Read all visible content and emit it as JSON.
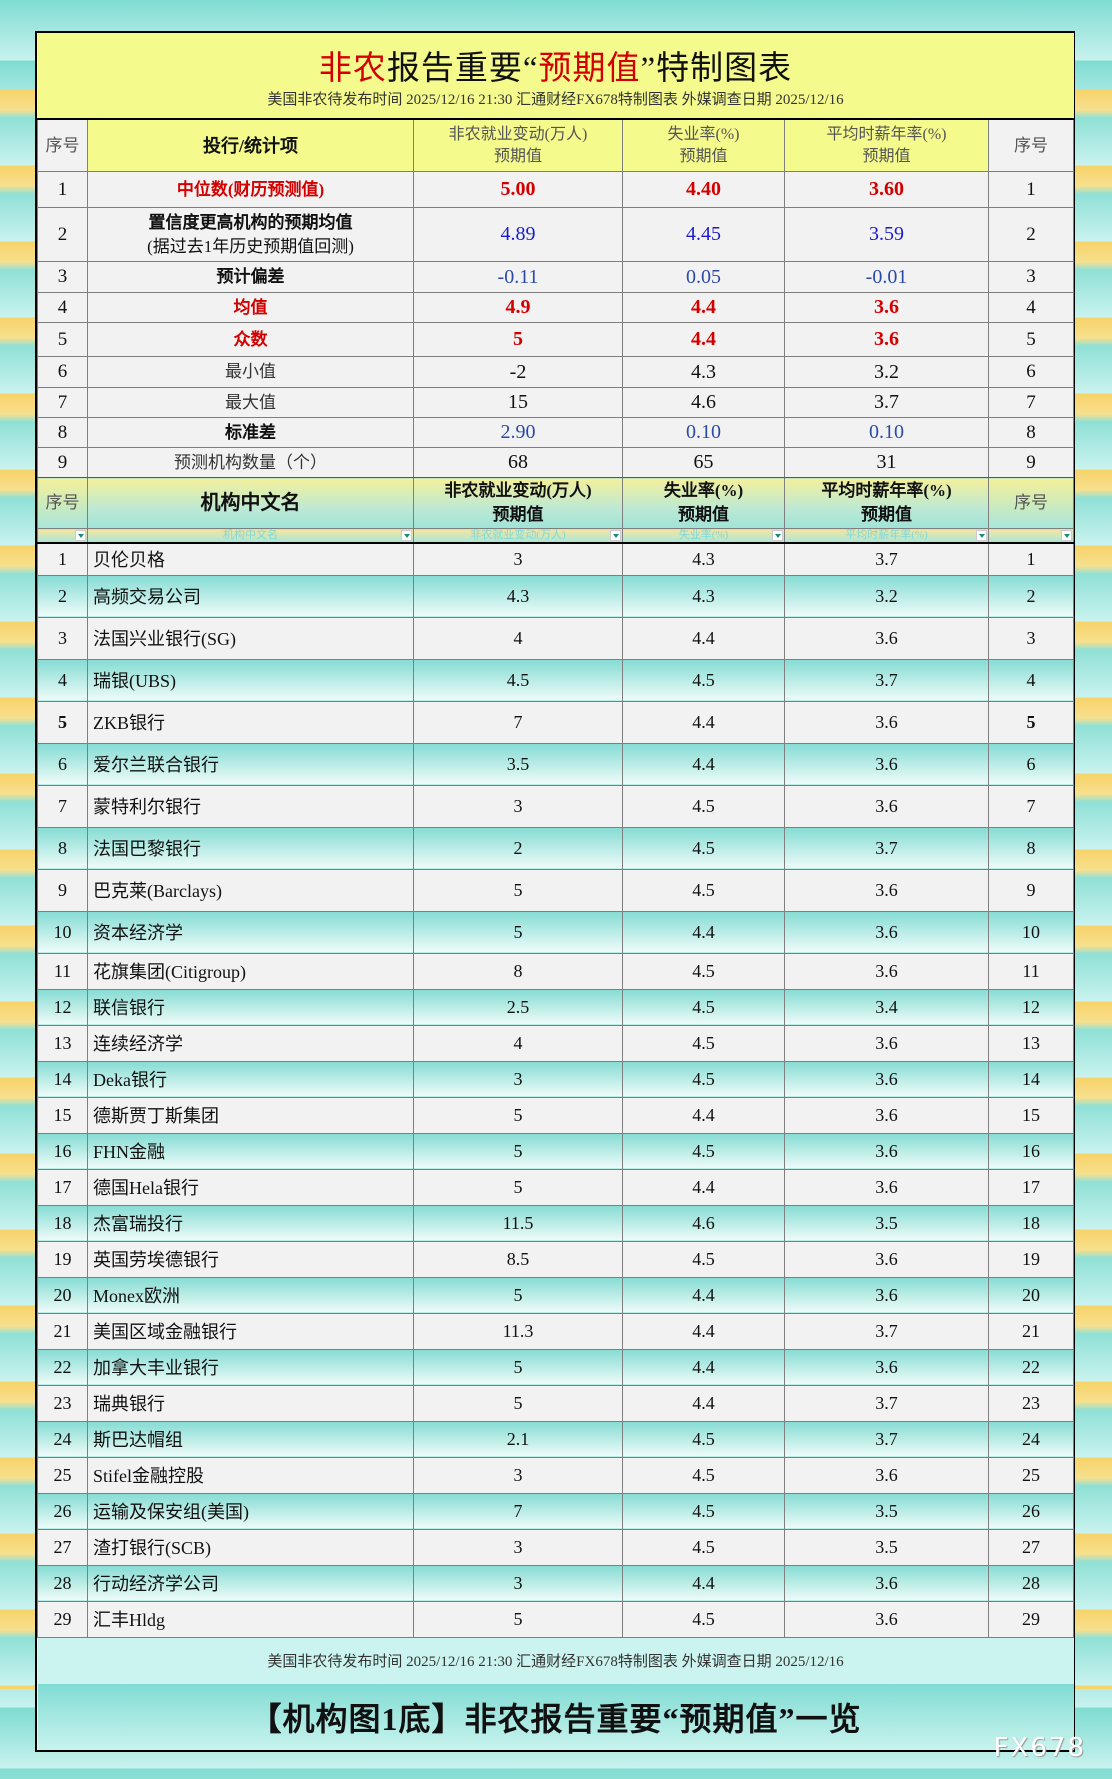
{
  "title": {
    "part1": "非农",
    "part2": "报告重要“",
    "part3": "预期值",
    "part4": "”特制图表",
    "subtitle": "美国非农待发布时间 2025/12/16 21:30  汇通财经FX678特制图表  外媒调查日期 2025/12/16"
  },
  "header": {
    "seq": "序号",
    "item": "投行/统计项",
    "nfp": "非农就业变动(万人)",
    "unemp": "失业率(%)",
    "wage": "平均时薪年率(%)",
    "sub": "预期值"
  },
  "stats": [
    {
      "n": "1",
      "label": "中位数(财历预测值)",
      "nfp": "5.00",
      "unemp": "4.40",
      "wage": "3.60",
      "style": "red"
    },
    {
      "n": "2",
      "label": "置信度更高机构的预期均值",
      "label2": "(据过去1年历史预期值回测)",
      "nfp": "4.89",
      "unemp": "4.45",
      "wage": "3.59",
      "style": "blue"
    },
    {
      "n": "3",
      "label": "预计偏差",
      "nfp": "-0.11",
      "unemp": "0.05",
      "wage": "-0.01",
      "style": "navy"
    },
    {
      "n": "4",
      "label": "均值",
      "nfp": "4.9",
      "unemp": "4.4",
      "wage": "3.6",
      "style": "red"
    },
    {
      "n": "5",
      "label": "众数",
      "nfp": "5",
      "unemp": "4.4",
      "wage": "3.6",
      "style": "red"
    },
    {
      "n": "6",
      "label": "最小值",
      "nfp": "-2",
      "unemp": "4.3",
      "wage": "3.2",
      "style": "plain"
    },
    {
      "n": "7",
      "label": "最大值",
      "nfp": "15",
      "unemp": "4.6",
      "wage": "3.7",
      "style": "plain"
    },
    {
      "n": "8",
      "label": "标准差",
      "nfp": "2.90",
      "unemp": "0.10",
      "wage": "0.10",
      "style": "navy"
    },
    {
      "n": "9",
      "label": "预测机构数量（个）",
      "nfp": "68",
      "unemp": "65",
      "wage": "31",
      "style": "plain"
    }
  ],
  "header2": {
    "seq": "序号",
    "name": "机构中文名",
    "nfp": "非农就业变动(万人)",
    "unemp": "失业率(%)",
    "wage": "平均时薪年率(%)",
    "sub": "预期值"
  },
  "filter": {
    "name": "机构中文名",
    "nfp": "非农就业变动(万人)",
    "unemp": "失业率(%)",
    "wage": "平均时薪年率(%)"
  },
  "institutions": [
    {
      "n": "1",
      "name": "贝伦贝格",
      "nfp": "3",
      "unemp": "4.3",
      "wage": "3.7"
    },
    {
      "n": "2",
      "name": "高频交易公司",
      "nfp": "4.3",
      "unemp": "4.3",
      "wage": "3.2"
    },
    {
      "n": "3",
      "name": "法国兴业银行(SG)",
      "nfp": "4",
      "unemp": "4.4",
      "wage": "3.6"
    },
    {
      "n": "4",
      "name": "瑞银(UBS)",
      "nfp": "4.5",
      "unemp": "4.5",
      "wage": "3.7"
    },
    {
      "n": "5",
      "name": "ZKB银行",
      "nfp": "7",
      "unemp": "4.4",
      "wage": "3.6"
    },
    {
      "n": "6",
      "name": "爱尔兰联合银行",
      "nfp": "3.5",
      "unemp": "4.4",
      "wage": "3.6"
    },
    {
      "n": "7",
      "name": "蒙特利尔银行",
      "nfp": "3",
      "unemp": "4.5",
      "wage": "3.6"
    },
    {
      "n": "8",
      "name": "法国巴黎银行",
      "nfp": "2",
      "unemp": "4.5",
      "wage": "3.7"
    },
    {
      "n": "9",
      "name": "巴克莱(Barclays)",
      "nfp": "5",
      "unemp": "4.5",
      "wage": "3.6"
    },
    {
      "n": "10",
      "name": "资本经济学",
      "nfp": "5",
      "unemp": "4.4",
      "wage": "3.6"
    },
    {
      "n": "11",
      "name": "花旗集团(Citigroup)",
      "nfp": "8",
      "unemp": "4.5",
      "wage": "3.6"
    },
    {
      "n": "12",
      "name": "联信银行",
      "nfp": "2.5",
      "unemp": "4.5",
      "wage": "3.4"
    },
    {
      "n": "13",
      "name": "连续经济学",
      "nfp": "4",
      "unemp": "4.5",
      "wage": "3.6"
    },
    {
      "n": "14",
      "name": "Deka银行",
      "nfp": "3",
      "unemp": "4.5",
      "wage": "3.6"
    },
    {
      "n": "15",
      "name": "德斯贾丁斯集团",
      "nfp": "5",
      "unemp": "4.4",
      "wage": "3.6"
    },
    {
      "n": "16",
      "name": "FHN金融",
      "nfp": "5",
      "unemp": "4.5",
      "wage": "3.6"
    },
    {
      "n": "17",
      "name": "德国Hela银行",
      "nfp": "5",
      "unemp": "4.4",
      "wage": "3.6"
    },
    {
      "n": "18",
      "name": "杰富瑞投行",
      "nfp": "11.5",
      "unemp": "4.6",
      "wage": "3.5"
    },
    {
      "n": "19",
      "name": "英国劳埃德银行",
      "nfp": "8.5",
      "unemp": "4.5",
      "wage": "3.6"
    },
    {
      "n": "20",
      "name": "Monex欧洲",
      "nfp": "5",
      "unemp": "4.4",
      "wage": "3.6"
    },
    {
      "n": "21",
      "name": "美国区域金融银行",
      "nfp": "11.3",
      "unemp": "4.4",
      "wage": "3.7"
    },
    {
      "n": "22",
      "name": "加拿大丰业银行",
      "nfp": "5",
      "unemp": "4.4",
      "wage": "3.6"
    },
    {
      "n": "23",
      "name": "瑞典银行",
      "nfp": "5",
      "unemp": "4.4",
      "wage": "3.7"
    },
    {
      "n": "24",
      "name": "斯巴达帽组",
      "nfp": "2.1",
      "unemp": "4.5",
      "wage": "3.7"
    },
    {
      "n": "25",
      "name": "Stifel金融控股",
      "nfp": "3",
      "unemp": "4.5",
      "wage": "3.6"
    },
    {
      "n": "26",
      "name": "运输及保安组(美国)",
      "nfp": "7",
      "unemp": "4.5",
      "wage": "3.5"
    },
    {
      "n": "27",
      "name": "渣打银行(SCB)",
      "nfp": "3",
      "unemp": "4.5",
      "wage": "3.5"
    },
    {
      "n": "28",
      "name": "行动经济学公司",
      "nfp": "3",
      "unemp": "4.4",
      "wage": "3.6"
    },
    {
      "n": "29",
      "name": "汇丰Hldg",
      "nfp": "5",
      "unemp": "4.5",
      "wage": "3.6"
    }
  ],
  "footer": {
    "subtitle": "美国非农待发布时间 2025/12/16 21:30  汇通财经FX678特制图表  外媒调查日期 2025/12/16",
    "title": "【机构图1底】非农报告重要“预期值”一览"
  },
  "watermark": "FX678",
  "colors": {
    "red": "#d40000",
    "blue": "#1a1ad0",
    "navy": "#2b4aa8",
    "title_bg": "#f4fa8c",
    "teal": "#84dcd4"
  }
}
